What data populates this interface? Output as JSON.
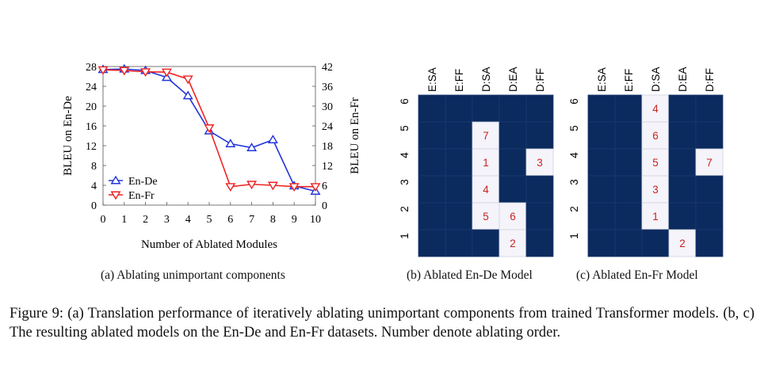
{
  "captions": {
    "a": "(a) Ablating unimportant components",
    "b": "(b) Ablated En-De Model",
    "c": "(c) Ablated En-Fr Model",
    "figure": "Figure 9: (a) Translation performance of iteratively ablating unimportant components from trained Transformer models. (b, c) The resulting ablated models on the En-De and En-Fr datasets. Number denote ablating order."
  },
  "colors": {
    "en_de": "#2233dd",
    "en_fr": "#ee2222",
    "grid_dark": "#0b2a5e",
    "cell_light": "#f4f4fa",
    "cell_text": "#cc2222"
  },
  "chart_data": [
    {
      "type": "line",
      "xlabel": "Number of Ablated Modules",
      "ylabel": "BLEU on En-De",
      "ylabel_right": "BLEU on En-Fr",
      "x": [
        0,
        1,
        2,
        3,
        4,
        5,
        6,
        7,
        8,
        9,
        10
      ],
      "xticks": [
        "0",
        "1",
        "2",
        "3",
        "4",
        "5",
        "6",
        "7",
        "8",
        "9",
        "10"
      ],
      "ylim": [
        0,
        28
      ],
      "yticks": [
        "0",
        "4",
        "8",
        "12",
        "16",
        "20",
        "24",
        "28"
      ],
      "ylim_right": [
        0,
        42
      ],
      "yticks_right": [
        "0",
        "6",
        "12",
        "18",
        "24",
        "30",
        "36",
        "42"
      ],
      "legend_position": "lower-left",
      "series": [
        {
          "name": "En-De",
          "axis": "left",
          "marker": "triangle-up",
          "values": [
            27.4,
            27.5,
            27.2,
            25.8,
            22.1,
            15.0,
            12.4,
            11.6,
            13.2,
            3.9,
            2.8
          ]
        },
        {
          "name": "En-Fr",
          "axis": "right",
          "marker": "triangle-down",
          "values": [
            41.0,
            40.8,
            40.4,
            40.3,
            38.2,
            23.4,
            5.6,
            6.3,
            6.0,
            5.6,
            5.6
          ]
        }
      ]
    },
    {
      "type": "heatmap",
      "name": "Ablated En-De Model",
      "columns": [
        "E:SA",
        "E:FF",
        "D:SA",
        "D:EA",
        "D:FF"
      ],
      "rows": [
        "6",
        "5",
        "4",
        "3",
        "2",
        "1"
      ],
      "cells": [
        {
          "row": "5",
          "col": "D:SA",
          "order": "7"
        },
        {
          "row": "4",
          "col": "D:SA",
          "order": "1"
        },
        {
          "row": "4",
          "col": "D:FF",
          "order": "3"
        },
        {
          "row": "3",
          "col": "D:SA",
          "order": "4"
        },
        {
          "row": "2",
          "col": "D:SA",
          "order": "5"
        },
        {
          "row": "2",
          "col": "D:EA",
          "order": "6"
        },
        {
          "row": "1",
          "col": "D:EA",
          "order": "2"
        }
      ]
    },
    {
      "type": "heatmap",
      "name": "Ablated En-Fr Model",
      "columns": [
        "E:SA",
        "E:FF",
        "D:SA",
        "D:EA",
        "D:FF"
      ],
      "rows": [
        "6",
        "5",
        "4",
        "3",
        "2",
        "1"
      ],
      "cells": [
        {
          "row": "6",
          "col": "D:SA",
          "order": "4"
        },
        {
          "row": "5",
          "col": "D:SA",
          "order": "6"
        },
        {
          "row": "4",
          "col": "D:SA",
          "order": "5"
        },
        {
          "row": "4",
          "col": "D:FF",
          "order": "7"
        },
        {
          "row": "3",
          "col": "D:SA",
          "order": "3"
        },
        {
          "row": "2",
          "col": "D:SA",
          "order": "1"
        },
        {
          "row": "1",
          "col": "D:EA",
          "order": "2"
        }
      ]
    }
  ]
}
